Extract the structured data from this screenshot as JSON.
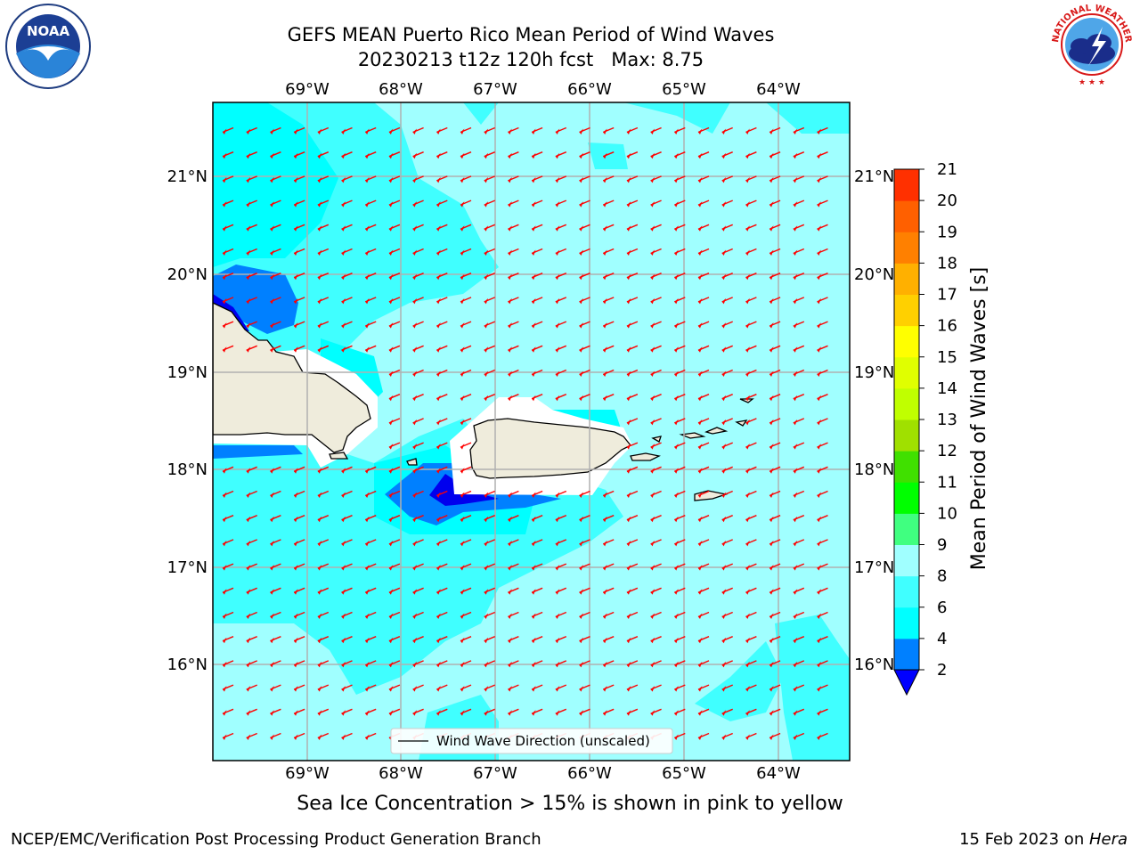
{
  "title": {
    "line1": "GEFS MEAN Puerto Rico Mean Period of Wind Waves",
    "line2": "20230213 t12z 120h fcst   Max: 8.75"
  },
  "map": {
    "lon_labels": [
      "69°W",
      "68°W",
      "67°W",
      "66°W",
      "65°W",
      "64°W"
    ],
    "lat_labels": [
      "21°N",
      "20°N",
      "19°N",
      "18°N",
      "17°N",
      "16°N"
    ],
    "legend_label": "Wind Wave Direction (unscaled)",
    "arrow_color": "#ff0000",
    "land_color": "#efecdc"
  },
  "colorbar": {
    "label": "Mean Period of Wind Waves [s]",
    "ticks": [
      "21",
      "20",
      "19",
      "18",
      "17",
      "16",
      "15",
      "14",
      "13",
      "12",
      "11",
      "10",
      "9",
      "8",
      "6",
      "4",
      "2"
    ],
    "colors": [
      "#0000ff",
      "#0080ff",
      "#00ffff",
      "#40ffff",
      "#a0ffff",
      "#40ff80",
      "#00ff00",
      "#40e000",
      "#a0e000",
      "#c0ff00",
      "#e0ff00",
      "#ffff00",
      "#ffd000",
      "#ffb000",
      "#ff8000",
      "#ff6000",
      "#ff3000",
      "#ff0000"
    ]
  },
  "footer": {
    "note": "Sea Ice Concentration > 15% is shown in pink to yellow",
    "left": "NCEP/EMC/Verification Post Processing Product Generation Branch",
    "right_date": "15 Feb 2023 on ",
    "right_host": "Hera"
  },
  "logos": {
    "noaa_text": "NOAA",
    "nws_text": "NATIONAL WEATHER SERVICE"
  }
}
